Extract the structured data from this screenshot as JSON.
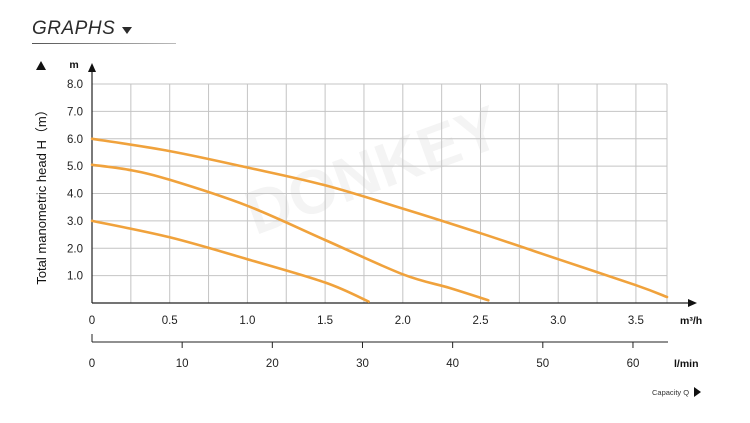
{
  "header": {
    "title": "GRAPHS"
  },
  "capacity_label": "Capacity Q",
  "watermark": "DONKEY",
  "chart_data": {
    "type": "line",
    "ylabel": "Total manometric head H（m）",
    "yunit": "m",
    "xunit": "m³/h",
    "x2unit": "l/min",
    "ylim": [
      0,
      8
    ],
    "xlim": [
      0,
      3.7
    ],
    "x2lim": [
      0,
      62
    ],
    "yticks": [
      "1.0",
      "2.0",
      "3.0",
      "4.0",
      "5.0",
      "6.0",
      "7.0",
      "8.0"
    ],
    "xticks": [
      "0",
      "0.5",
      "1.0",
      "1.5",
      "2.0",
      "2.5",
      "3.0",
      "3.5"
    ],
    "x2ticks": [
      "0",
      "10",
      "20",
      "30",
      "40",
      "50",
      "60"
    ],
    "grid": true,
    "line_color": "#f0a23c",
    "series": [
      {
        "x": [
          0,
          0.5,
          1.0,
          1.5,
          2.0,
          2.5,
          3.0,
          3.5,
          3.7
        ],
        "y": [
          6.0,
          5.55,
          4.95,
          4.3,
          3.45,
          2.55,
          1.6,
          0.65,
          0.22
        ]
      },
      {
        "x": [
          0,
          0.25,
          0.5,
          1.0,
          1.5,
          2.0,
          2.3,
          2.55
        ],
        "y": [
          5.05,
          4.85,
          4.5,
          3.55,
          2.3,
          1.05,
          0.55,
          0.1
        ]
      },
      {
        "x": [
          0,
          0.5,
          1.0,
          1.5,
          1.78
        ],
        "y": [
          3.0,
          2.4,
          1.6,
          0.75,
          0.05
        ]
      }
    ]
  }
}
